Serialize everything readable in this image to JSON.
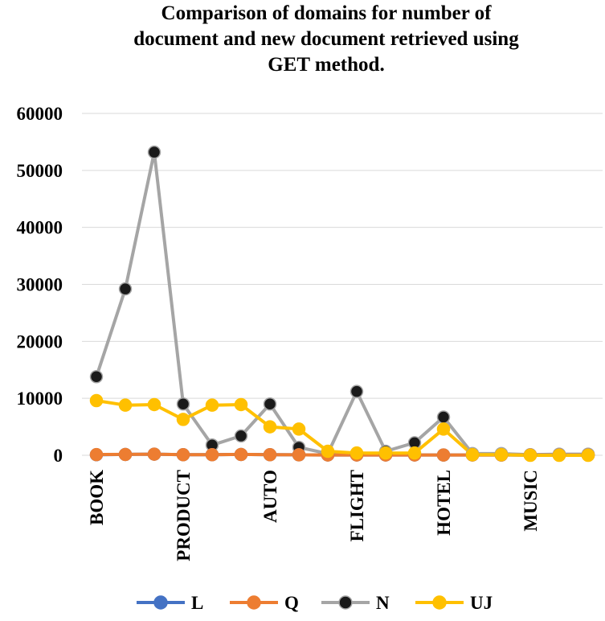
{
  "chart_data": {
    "type": "line",
    "title_lines": [
      "Comparison of domains for number of",
      "document and new document retrieved using",
      "GET method."
    ],
    "category_labels": [
      "BOOK",
      "PRODUCT",
      "AUTO",
      "FLIGHT",
      "HOTEL",
      "MUSIC"
    ],
    "categories": [
      "BOOK",
      "",
      "",
      "PRODUCT",
      "",
      "",
      "AUTO",
      "",
      "",
      "FLIGHT",
      "",
      "",
      "HOTEL",
      "",
      "",
      "MUSIC",
      "",
      ""
    ],
    "ylim": [
      0,
      60000
    ],
    "yticks": [
      0,
      10000,
      20000,
      30000,
      40000,
      50000,
      60000
    ],
    "y_tick_labels": [
      "0",
      "10000",
      "20000",
      "30000",
      "40000",
      "50000",
      "60000"
    ],
    "grid": true,
    "legend_position": "bottom",
    "series": [
      {
        "name": "L",
        "color": "#4472c4",
        "marker_fill": "#4472c4",
        "values": [
          100,
          150,
          200,
          100,
          100,
          150,
          100,
          80,
          60,
          60,
          60,
          60,
          50,
          60,
          50,
          40,
          40,
          40
        ]
      },
      {
        "name": "Q",
        "color": "#ed7d31",
        "marker_fill": "#ed7d31",
        "values": [
          120,
          150,
          200,
          100,
          100,
          150,
          100,
          80,
          60,
          60,
          60,
          60,
          50,
          60,
          50,
          40,
          40,
          40
        ]
      },
      {
        "name": "N",
        "color": "#a5a5a5",
        "marker_fill": "#1a1a1a",
        "values": [
          13800,
          29200,
          53200,
          9000,
          1800,
          3400,
          9000,
          1400,
          300,
          11200,
          700,
          2200,
          6700,
          300,
          300,
          100,
          200,
          200
        ]
      },
      {
        "name": "UJ",
        "color": "#ffc000",
        "marker_fill": "#ffc000",
        "values": [
          9600,
          8800,
          8900,
          6300,
          8800,
          8900,
          5000,
          4600,
          700,
          400,
          400,
          400,
          4600,
          100,
          100,
          0,
          0,
          0
        ]
      }
    ]
  }
}
